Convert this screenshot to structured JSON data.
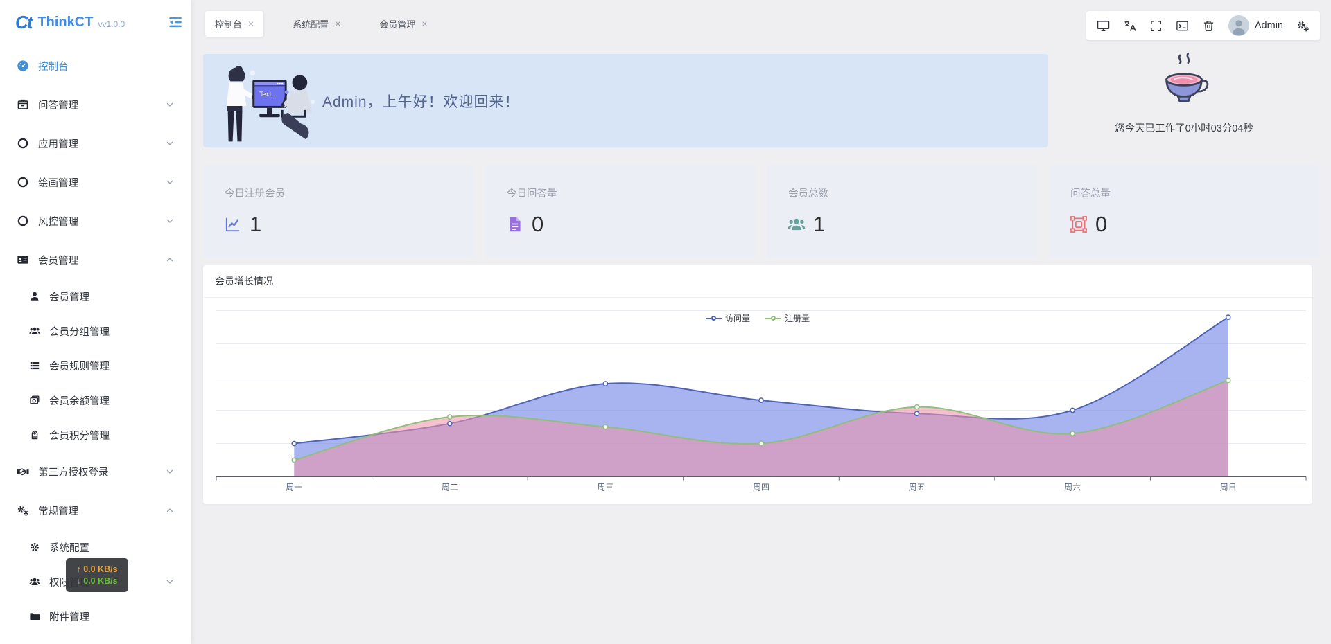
{
  "app": {
    "logo": "Ct",
    "title": "ThinkCT",
    "version": "vv1.0.0"
  },
  "sidebar": {
    "items": [
      {
        "label": "控制台",
        "icon": "dashboard-icon",
        "active": true
      },
      {
        "label": "问答管理",
        "icon": "archive-icon",
        "chevron": "down"
      },
      {
        "label": "应用管理",
        "icon": "circle-icon",
        "chevron": "down"
      },
      {
        "label": "绘画管理",
        "icon": "circle-icon",
        "chevron": "down"
      },
      {
        "label": "风控管理",
        "icon": "circle-icon",
        "chevron": "down"
      },
      {
        "label": "会员管理",
        "icon": "idcard-icon",
        "chevron": "up",
        "expanded": true,
        "children": [
          {
            "label": "会员管理",
            "icon": "user-icon"
          },
          {
            "label": "会员分组管理",
            "icon": "users-icon"
          },
          {
            "label": "会员规则管理",
            "icon": "list-icon"
          },
          {
            "label": "会员余额管理",
            "icon": "money-icon"
          },
          {
            "label": "会员积分管理",
            "icon": "score-icon"
          }
        ]
      },
      {
        "label": "第三方授权登录",
        "icon": "handshake-icon",
        "chevron": "down"
      },
      {
        "label": "常规管理",
        "icon": "cogs-icon",
        "chevron": "up",
        "expanded": true,
        "children": [
          {
            "label": "系统配置",
            "icon": "gear-icon"
          },
          {
            "label": "权限管理",
            "icon": "users-icon",
            "chevron": "down"
          },
          {
            "label": "附件管理",
            "icon": "folder-icon"
          }
        ]
      }
    ]
  },
  "tabs": {
    "close_glyph": "×",
    "items": [
      {
        "label": "控制台",
        "active": true
      },
      {
        "label": "系统配置",
        "active": false
      },
      {
        "label": "会员管理",
        "active": false
      }
    ]
  },
  "toolbar": {
    "icons": [
      "desktop-icon",
      "translate-icon",
      "fullscreen-icon",
      "terminal-icon",
      "trash-icon"
    ],
    "user": {
      "name": "Admin"
    },
    "settings_icon": "gears-icon"
  },
  "welcome": {
    "greeting": "Admin，上午好！欢迎回来！"
  },
  "worktime": {
    "text": "您今天已工作了0小时03分04秒"
  },
  "net_tooltip": {
    "up": "↑ 0.0 KB/s",
    "down": "↓ 0.0 KB/s",
    "up_color": "#e8a33d",
    "down_color": "#6abe39"
  },
  "stats": [
    {
      "label": "今日注册会员",
      "value": "1",
      "icon": "chart-line-icon",
      "color": "#6478e8"
    },
    {
      "label": "今日问答量",
      "value": "0",
      "icon": "file-icon",
      "color": "#9a6ee0"
    },
    {
      "label": "会员总数",
      "value": "1",
      "icon": "team-icon",
      "color": "#64a39b"
    },
    {
      "label": "问答总量",
      "value": "0",
      "icon": "object-group-icon",
      "color": "#ef7070"
    }
  ],
  "chart_data": {
    "type": "area",
    "title": "会员增长情况",
    "categories": [
      "周一",
      "周二",
      "周三",
      "周四",
      "周五",
      "周六",
      "周日"
    ],
    "series": [
      {
        "name": "访问量",
        "values": [
          10,
          16,
          28,
          23,
          19,
          20,
          48
        ],
        "line_color": "#4c63b6",
        "fill_color": "rgba(110,130,228,0.6)"
      },
      {
        "name": "注册量",
        "values": [
          5,
          18,
          15,
          10,
          21,
          13,
          29
        ],
        "line_color": "#8fbf78",
        "fill_color": "rgba(238,148,172,0.58)"
      }
    ],
    "ylim": [
      0,
      50
    ],
    "y_step": 10,
    "grid": true,
    "legend_position": "top-center",
    "y_axis_labels_visible": false
  }
}
